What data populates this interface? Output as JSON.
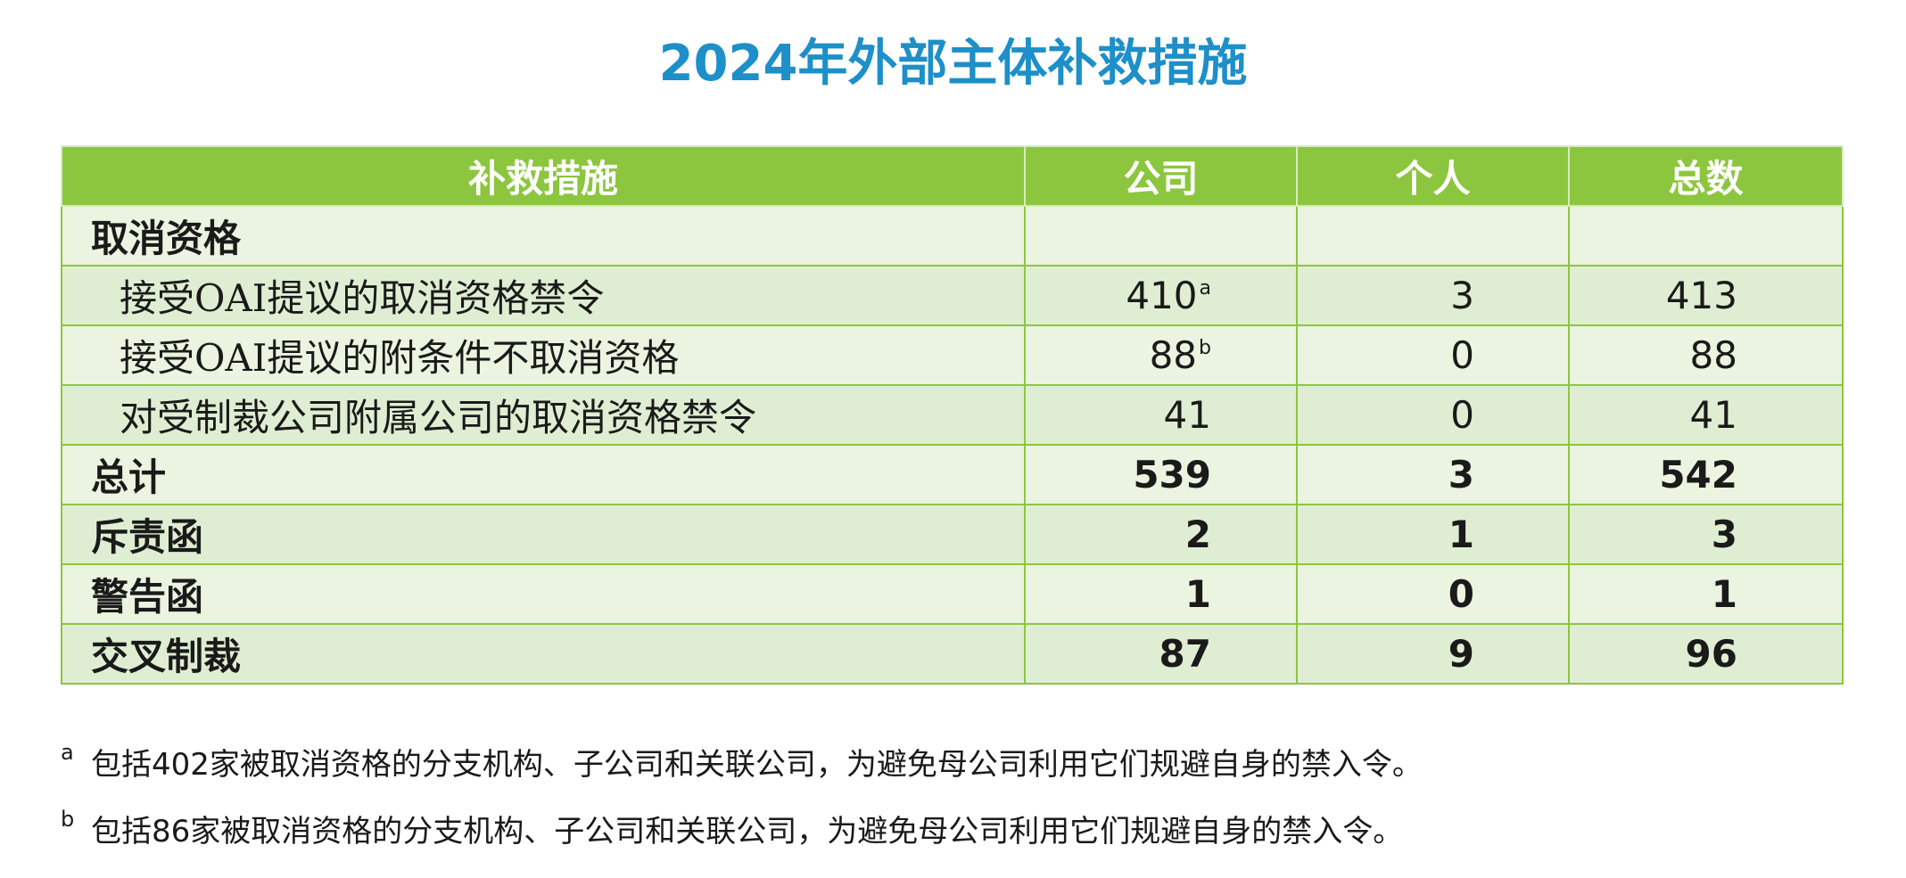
{
  "title": "2024年外部主体补救措施",
  "table": {
    "headers": [
      "补救措施",
      "公司",
      "个人",
      "总数"
    ],
    "rows": [
      {
        "label": "取消资格",
        "company": "",
        "company_sup": "",
        "individual": "",
        "total": "",
        "style": "section"
      },
      {
        "label": "接受OAI提议的取消资格禁令",
        "company": "410",
        "company_sup": "a",
        "individual": "3",
        "total": "413",
        "style": "sub"
      },
      {
        "label": "接受OAI提议的附条件不取消资格",
        "company": "88",
        "company_sup": "b",
        "individual": "0",
        "total": "88",
        "style": "sub"
      },
      {
        "label": "对受制裁公司附属公司的取消资格禁令",
        "company": "41",
        "company_sup": "",
        "individual": "0",
        "total": "41",
        "style": "sub"
      },
      {
        "label": "总计",
        "company": "539",
        "company_sup": "",
        "individual": "3",
        "total": "542",
        "style": "bold"
      },
      {
        "label": "斥责函",
        "company": "2",
        "company_sup": "",
        "individual": "1",
        "total": "3",
        "style": "bold"
      },
      {
        "label": "警告函",
        "company": "1",
        "company_sup": "",
        "individual": "0",
        "total": "1",
        "style": "bold"
      },
      {
        "label": "交叉制裁",
        "company": "87",
        "company_sup": "",
        "individual": "9",
        "total": "96",
        "style": "bold"
      }
    ]
  },
  "footnotes": [
    {
      "mark": "a",
      "text": "包括402家被取消资格的分支机构、子公司和关联公司，为避免母公司利用它们规避自身的禁入令。"
    },
    {
      "mark": "b",
      "text": "包括86家被取消资格的分支机构、子公司和关联公司，为避免母公司利用它们规避自身的禁入令。"
    }
  ],
  "colors": {
    "title": "#1d8fc9",
    "header_bg": "#8cc63e",
    "row_light": "#eaf4e0",
    "row_dark": "#dfeed2"
  }
}
